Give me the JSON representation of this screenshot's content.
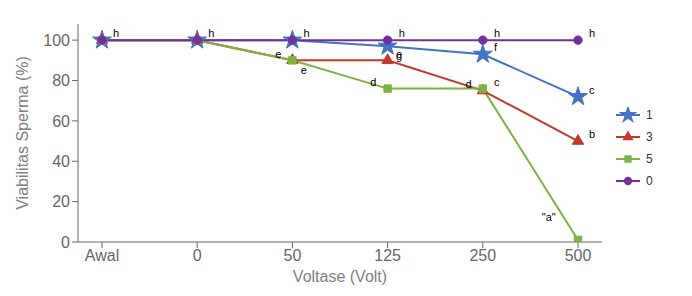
{
  "chart_data": {
    "type": "line",
    "xlabel": "Voltase (Volt)",
    "ylabel": "Viabilitas Sperma (%)",
    "categories": [
      "Awal",
      "0",
      "50",
      "125",
      "250",
      "500"
    ],
    "series": [
      {
        "name": "1",
        "color": "#4472C4",
        "marker": "star",
        "values": [
          100,
          100,
          100,
          97,
          93,
          72
        ]
      },
      {
        "name": "3",
        "color": "#C0392B",
        "marker": "triangle",
        "values": [
          100,
          100,
          90,
          90,
          75,
          50
        ]
      },
      {
        "name": "5",
        "color": "#7CB342",
        "marker": "square",
        "values": [
          100,
          100,
          90,
          76,
          76,
          1
        ]
      },
      {
        "name": "0",
        "color": "#7030A0",
        "marker": "circle",
        "values": [
          100,
          100,
          100,
          100,
          100,
          100
        ]
      }
    ],
    "ylim": [
      0,
      108
    ],
    "yticks": [
      0,
      20,
      40,
      60,
      80,
      100
    ],
    "grid": false,
    "legend": "right",
    "annotations": [
      {
        "series": "0",
        "x": "Awal",
        "y": 100,
        "text": "h"
      },
      {
        "series": "0",
        "x": "0",
        "y": 100,
        "text": "h"
      },
      {
        "series": "0",
        "x": "50",
        "y": 100,
        "text": "h"
      },
      {
        "series": "0",
        "x": "125",
        "y": 100,
        "text": "h"
      },
      {
        "series": "0",
        "x": "250",
        "y": 100,
        "text": "h"
      },
      {
        "series": "0",
        "x": "500",
        "y": 100,
        "text": "h"
      },
      {
        "series": "5",
        "x": "50",
        "y": 90,
        "text": "e"
      },
      {
        "series": "5",
        "x": "125",
        "y": 76,
        "text": "d"
      },
      {
        "series": "5",
        "x": "250",
        "y": 76,
        "text": "c"
      },
      {
        "series": "5",
        "x": "500",
        "y": 1,
        "text": "\"a\""
      },
      {
        "series": "3",
        "x": "50",
        "y": 90,
        "text": "e"
      },
      {
        "series": "3",
        "x": "125",
        "y": 90,
        "text": "e"
      },
      {
        "series": "3",
        "x": "250",
        "y": 75,
        "text": "d"
      },
      {
        "series": "3",
        "x": "500",
        "y": 50,
        "text": "b"
      },
      {
        "series": "1",
        "x": "125",
        "y": 97,
        "text": "g"
      },
      {
        "series": "1",
        "x": "250",
        "y": 93,
        "text": "f"
      },
      {
        "series": "1",
        "x": "500",
        "y": 72,
        "text": "c"
      }
    ]
  }
}
